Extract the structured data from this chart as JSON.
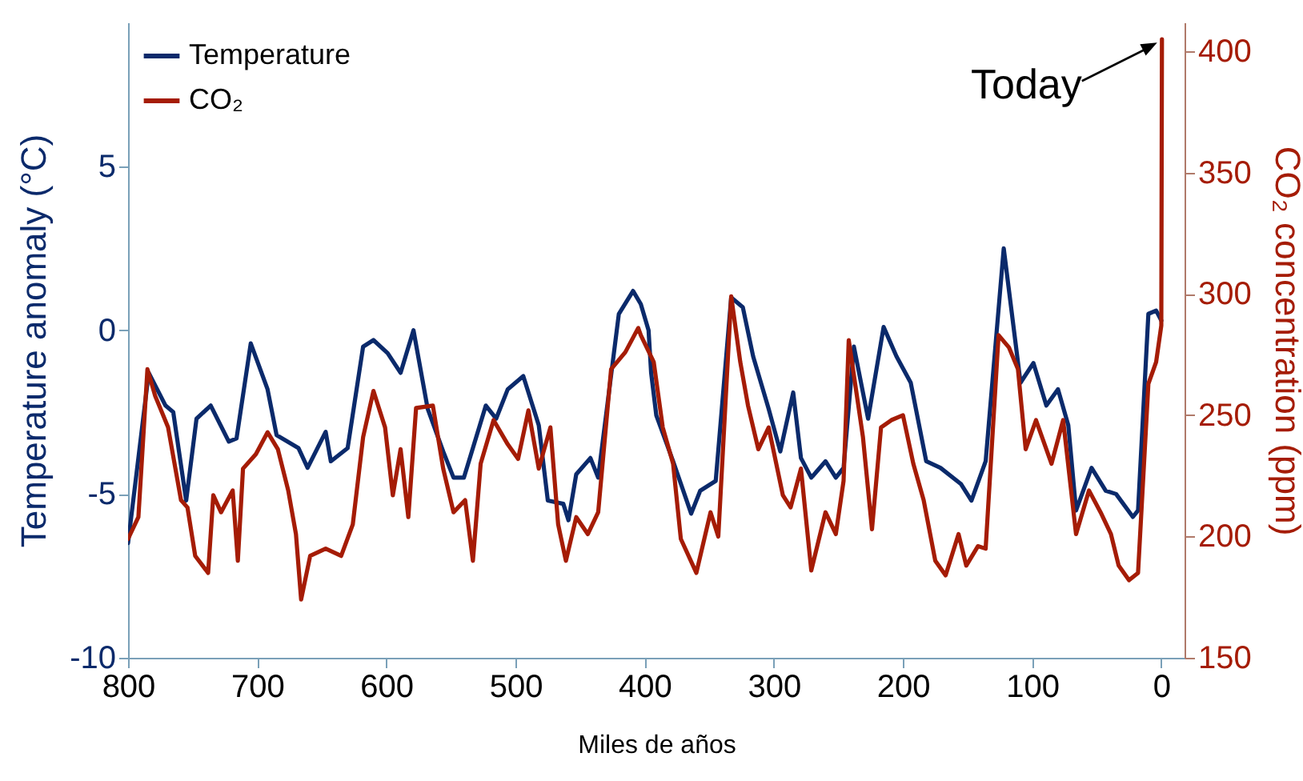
{
  "chart_data": {
    "type": "line",
    "xlabel": "Miles de años",
    "ylabel": "Temperature anomaly (°C)",
    "y2label": "CO₂ concentration (ppm)",
    "xlim": [
      800,
      -18
    ],
    "xticks": [
      800,
      700,
      600,
      500,
      400,
      300,
      200,
      100,
      0
    ],
    "ylim": [
      -10,
      9.4
    ],
    "yticks": [
      -10,
      -5,
      0,
      5
    ],
    "y2lim": [
      150,
      412
    ],
    "y2ticks": [
      150,
      200,
      250,
      300,
      350,
      400
    ],
    "legend": "top left",
    "grid": false,
    "line_style": "solid",
    "annotations": [
      "Today"
    ],
    "series": [
      {
        "name": "Temperature",
        "color": "#0b2a6b",
        "x": [
          800,
          784,
          771,
          765,
          755,
          747,
          736,
          722,
          716,
          705,
          692,
          685,
          668,
          661,
          647,
          643,
          630,
          618,
          610,
          599,
          589,
          579,
          568,
          556,
          548,
          540,
          523,
          515,
          506,
          494,
          482,
          475,
          463,
          459,
          453,
          442,
          436,
          420,
          409,
          403,
          397,
          395,
          391,
          378,
          364,
          357,
          345,
          333,
          324,
          316,
          304,
          295,
          285,
          279,
          271,
          260,
          252,
          246,
          238,
          227,
          215,
          205,
          194,
          182,
          171,
          155,
          147,
          136,
          122,
          109,
          99,
          89,
          80,
          72,
          66,
          54,
          43,
          35,
          22,
          18,
          10,
          4,
          0
        ],
        "values": [
          -6.5,
          -1.3,
          -2.3,
          -2.5,
          -5.2,
          -2.7,
          -2.3,
          -3.4,
          -3.3,
          -0.4,
          -1.8,
          -3.2,
          -3.6,
          -4.2,
          -3.1,
          -4.0,
          -3.6,
          -0.5,
          -0.3,
          -0.7,
          -1.3,
          0,
          -2.4,
          -3.7,
          -4.5,
          -4.5,
          -2.3,
          -2.7,
          -1.8,
          -1.4,
          -2.9,
          -5.2,
          -5.3,
          -5.8,
          -4.4,
          -3.9,
          -4.5,
          0.5,
          1.2,
          0.8,
          0.0,
          -1.3,
          -2.6,
          -4.0,
          -5.6,
          -4.9,
          -4.6,
          1.0,
          0.7,
          -0.8,
          -2.4,
          -3.7,
          -1.9,
          -3.9,
          -4.5,
          -4.0,
          -4.5,
          -4.2,
          -0.5,
          -2.7,
          0.1,
          -0.8,
          -1.6,
          -4.0,
          -4.2,
          -4.7,
          -5.2,
          -4.0,
          2.5,
          -1.6,
          -1.0,
          -2.3,
          -1.8,
          -2.9,
          -5.5,
          -4.2,
          -4.9,
          -5.0,
          -5.7,
          -5.5,
          0.5,
          0.6,
          0.3
        ]
      },
      {
        "name": "CO₂",
        "color": "#a51c06",
        "axis": "y2",
        "x": [
          800,
          792,
          785,
          779,
          769,
          759,
          754,
          748,
          738,
          734,
          728,
          719,
          715,
          711,
          701,
          692,
          684,
          676,
          670,
          666,
          659,
          647,
          635,
          626,
          618,
          610,
          601,
          595,
          589,
          583,
          577,
          564,
          556,
          548,
          539,
          533,
          527,
          517,
          506,
          498,
          490,
          482,
          473,
          467,
          461,
          453,
          444,
          436,
          426,
          415,
          405,
          403,
          393,
          386,
          378,
          372,
          360,
          349,
          343,
          333,
          326,
          320,
          312,
          304,
          293,
          287,
          279,
          271,
          260,
          252,
          246,
          242,
          231,
          224,
          217,
          209,
          200,
          192,
          184,
          175,
          167,
          157,
          151,
          142,
          136,
          126,
          118,
          111,
          105,
          97,
          85,
          76,
          66,
          56,
          47,
          39,
          33,
          25,
          18,
          10,
          4,
          0,
          -0.5
        ],
        "values": [
          199,
          208,
          269,
          258,
          245,
          215,
          212,
          192,
          185,
          217,
          210,
          219,
          190,
          228,
          234,
          243,
          236,
          219,
          201,
          174,
          192,
          195,
          192,
          205,
          241,
          260,
          245,
          217,
          236,
          208,
          253,
          254,
          228,
          210,
          215,
          190,
          230,
          248,
          238,
          232,
          252,
          228,
          245,
          205,
          190,
          208,
          201,
          210,
          269,
          276,
          286,
          283,
          272,
          245,
          230,
          199,
          185,
          210,
          200,
          299,
          272,
          254,
          236,
          245,
          217,
          212,
          228,
          186,
          210,
          201,
          223,
          281,
          241,
          203,
          245,
          248,
          250,
          230,
          215,
          190,
          184,
          201,
          188,
          196,
          195,
          283,
          278,
          269,
          236,
          248,
          230,
          248,
          201,
          219,
          210,
          201,
          188,
          182,
          185,
          263,
          272,
          287,
          405
        ]
      }
    ]
  }
}
